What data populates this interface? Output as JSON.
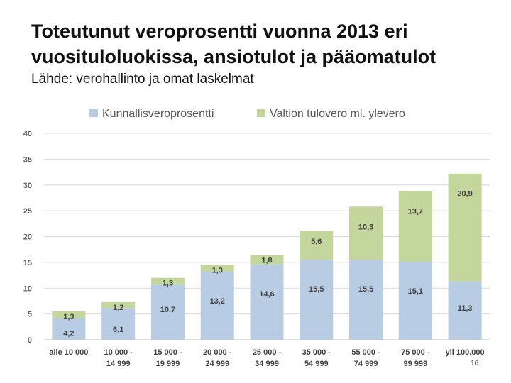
{
  "slide": {
    "title": "Toteutunut veroprosentti vuonna 2013 eri vuosituloluokissa, ansiotulot ja pääomatulot",
    "subtitle": "Lähde: verohallinto ja omat laskelmat",
    "page_number": "16"
  },
  "chart_data": {
    "type": "bar",
    "stacked": true,
    "categories": [
      [
        "alle 10 000"
      ],
      [
        "10 000 -",
        "14 999"
      ],
      [
        "15 000 -",
        "19 999"
      ],
      [
        "20 000 -",
        "24 999"
      ],
      [
        "25 000 -",
        "34 999"
      ],
      [
        "35 000 -",
        "54 999"
      ],
      [
        "55 000 -",
        "74 999"
      ],
      [
        "75 000 -",
        "99 999"
      ],
      [
        "yli 100.000"
      ]
    ],
    "series": [
      {
        "name": "Kunnallisveroprosentti",
        "color": "#b8cce4",
        "values": [
          4.2,
          6.1,
          10.7,
          13.2,
          14.6,
          15.5,
          15.5,
          15.1,
          11.3
        ],
        "labels": [
          "4,2",
          "6,1",
          "10,7",
          "13,2",
          "14,6",
          "15,5",
          "15,5",
          "15,1",
          "11,3"
        ]
      },
      {
        "name": "Valtion tulovero ml. ylevero",
        "color": "#c3d69b",
        "values": [
          1.3,
          1.2,
          1.3,
          1.3,
          1.8,
          5.6,
          10.3,
          13.7,
          20.9
        ],
        "labels": [
          "1,3",
          "1,2",
          "1,3",
          "1,3",
          "1,8",
          "5,6",
          "10,3",
          "13,7",
          "20,9"
        ]
      }
    ],
    "y_ticks": [
      "0",
      "5",
      "10",
      "15",
      "20",
      "25",
      "30",
      "35",
      "40"
    ],
    "ylim": [
      0,
      40
    ],
    "grid": true,
    "legend": "top"
  }
}
